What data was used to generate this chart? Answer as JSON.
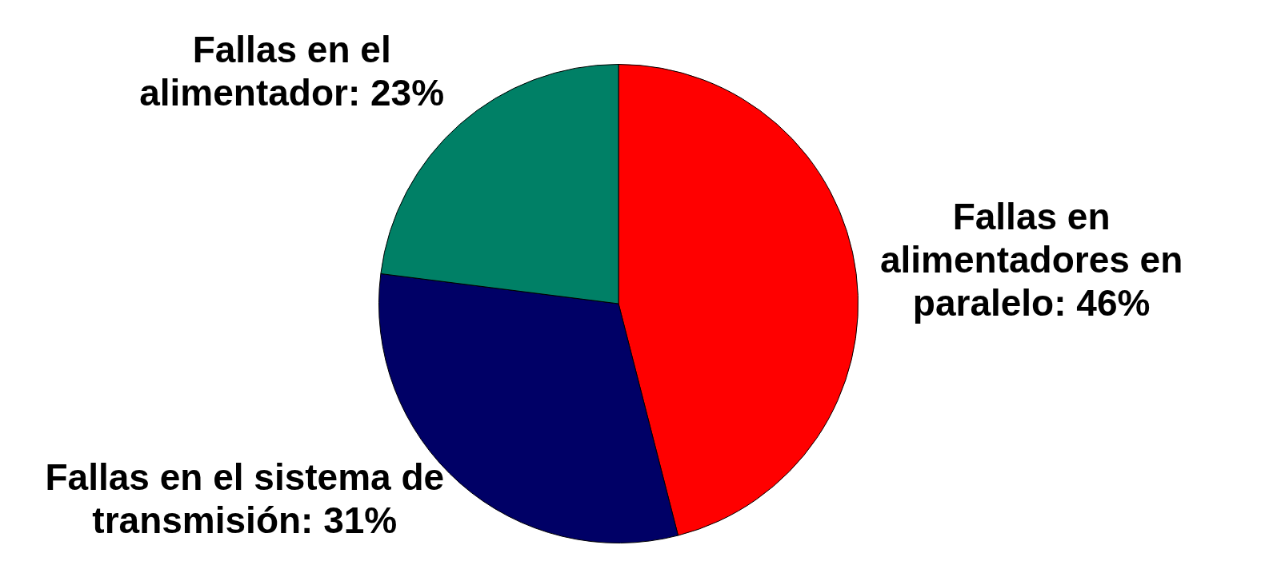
{
  "chart_data": {
    "type": "pie",
    "categories": [
      "Fallas en alimentadores en paralelo",
      "Fallas en el sistema de transmisión",
      "Fallas en el alimentador"
    ],
    "values": [
      46,
      31,
      23
    ],
    "colors": [
      "#ff0000",
      "#000066",
      "#008066"
    ],
    "value_labels": [
      "46%",
      "31%",
      "23%"
    ],
    "legend": false
  }
}
